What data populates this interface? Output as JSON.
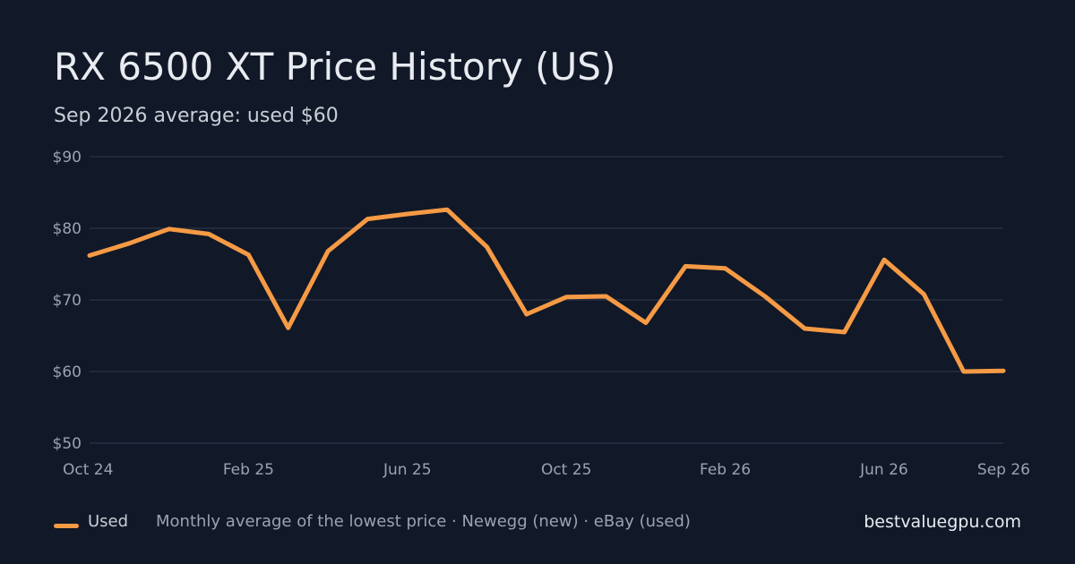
{
  "title": "RX 6500 XT Price History (US)",
  "subtitle": "Sep 2026 average: used $60",
  "footer": {
    "legend_label": "Used",
    "note": "Monthly average of the lowest price · Newegg (new) · eBay (used)",
    "site": "bestvaluegpu.com"
  },
  "colors": {
    "background": "#111827",
    "series": "#f59a45",
    "grid": "#273142"
  },
  "chart_data": {
    "type": "line",
    "title": "RX 6500 XT Price History (US)",
    "subtitle": "Sep 2026 average: used $60",
    "x": [
      "Oct 24",
      "Nov 24",
      "Dec 24",
      "Jan 25",
      "Feb 25",
      "Mar 25",
      "Apr 25",
      "May 25",
      "Jun 25",
      "Jul 25",
      "Aug 25",
      "Sep 25",
      "Oct 25",
      "Nov 25",
      "Dec 25",
      "Jan 26",
      "Feb 26",
      "Mar 26",
      "Apr 26",
      "May 26",
      "Jun 26",
      "Jul 26",
      "Aug 26",
      "Sep 26"
    ],
    "x_tick_labels": [
      "Oct 24",
      "Feb 25",
      "Jun 25",
      "Oct 25",
      "Feb 26",
      "Jun 26",
      "Sep 26"
    ],
    "y_tick_labels": [
      "$90",
      "$80",
      "$70",
      "$60",
      "$50"
    ],
    "ylim": [
      50,
      90
    ],
    "grid": true,
    "legend": "bottom-left",
    "series": [
      {
        "name": "Used",
        "values": [
          76.2,
          77.9,
          79.9,
          79.2,
          76.3,
          66.1,
          76.8,
          81.3,
          82.0,
          82.6,
          77.4,
          68.0,
          70.4,
          70.5,
          66.8,
          74.7,
          74.4,
          70.5,
          66.0,
          65.5,
          75.6,
          70.8,
          60.0,
          60.1
        ]
      }
    ]
  }
}
